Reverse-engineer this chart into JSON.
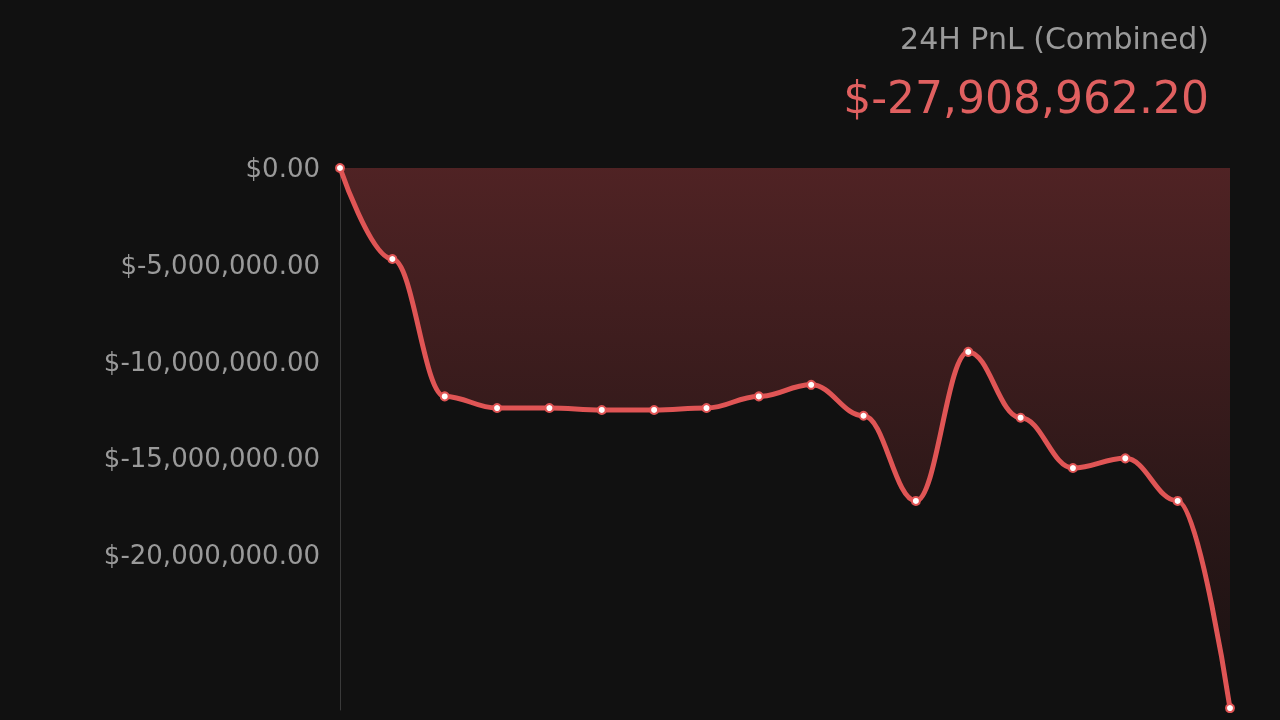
{
  "chart_data": {
    "type": "area",
    "title": "24H PnL (Combined)",
    "subtitle": "$-27,908,962.20",
    "categories": [
      null,
      null,
      null,
      null,
      null,
      null,
      null,
      null,
      null,
      null,
      null,
      null,
      null,
      null,
      null,
      null,
      null,
      null
    ],
    "series": [
      {
        "color": "#e05555",
        "values": [
          0,
          -4700000,
          -11800000,
          -12400000,
          -12400000,
          -12500000,
          -12500000,
          -12400000,
          -11800000,
          -11200000,
          -12800000,
          -17200000,
          -9500000,
          -12900000,
          -15500000,
          -15000000,
          -17200000,
          -27900000
        ]
      }
    ],
    "ylim": [
      -28000000,
      0
    ],
    "yticks": [
      {
        "value": 0,
        "label": "$0.00"
      },
      {
        "value": -5000000,
        "label": "$-5,000,000.00"
      },
      {
        "value": -10000000,
        "label": "$-10,000,000.00"
      },
      {
        "value": -15000000,
        "label": "$-15,000,000.00"
      },
      {
        "value": -20000000,
        "label": "$-20,000,000.00"
      }
    ],
    "tick_labels": "y",
    "grid": false,
    "marker": "circle",
    "line_style": "solid"
  }
}
